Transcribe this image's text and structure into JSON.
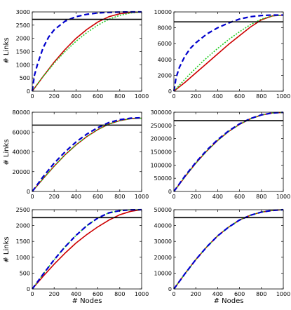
{
  "figure": {
    "xlabel": "# Nodes",
    "ylabel": "# Links"
  },
  "legend_colors": {
    "threshold": "#000000",
    "red_solid": "#cc0000",
    "green_dotted": "#22cc22",
    "blue_dashed": "#0000cc"
  },
  "chart_data": [
    {
      "type": "line",
      "row": 0,
      "col": 0,
      "xlim": [
        0,
        1000
      ],
      "ylim": [
        0,
        3000
      ],
      "xticks": [
        0,
        200,
        400,
        600,
        800,
        1000
      ],
      "yticks": [
        0,
        500,
        1000,
        1500,
        2000,
        2500,
        3000
      ],
      "ytick_labels": [
        "0",
        "500",
        "1000",
        "1500",
        "2000",
        "2500",
        "3000"
      ],
      "threshold": 2720,
      "series": [
        {
          "style": "red_solid",
          "x": [
            0,
            100,
            200,
            300,
            400,
            500,
            600,
            700,
            800,
            900,
            1000
          ],
          "y": [
            0,
            560,
            1100,
            1580,
            2000,
            2340,
            2620,
            2820,
            2930,
            2980,
            3000
          ]
        },
        {
          "style": "green_dotted",
          "x": [
            0,
            100,
            200,
            300,
            400,
            500,
            600,
            700,
            800,
            900,
            1000
          ],
          "y": [
            0,
            560,
            1060,
            1500,
            1890,
            2220,
            2500,
            2720,
            2870,
            2960,
            3000
          ]
        },
        {
          "style": "blue_dashed",
          "x": [
            0,
            20,
            50,
            100,
            150,
            200,
            300,
            400,
            500,
            600,
            700,
            800,
            900,
            1000
          ],
          "y": [
            0,
            600,
            1050,
            1650,
            2050,
            2320,
            2650,
            2820,
            2910,
            2960,
            2985,
            2995,
            3000,
            3000
          ]
        }
      ]
    },
    {
      "type": "line",
      "row": 0,
      "col": 1,
      "xlim": [
        0,
        1000
      ],
      "ylim": [
        0,
        10000
      ],
      "xticks": [
        0,
        200,
        400,
        600,
        800,
        1000
      ],
      "yticks": [
        0,
        2000,
        4000,
        6000,
        8000,
        10000
      ],
      "ytick_labels": [
        "0",
        "2000",
        "4000",
        "6000",
        "8000",
        "10000"
      ],
      "threshold": 8750,
      "series": [
        {
          "style": "red_solid",
          "x": [
            0,
            100,
            200,
            300,
            400,
            500,
            600,
            700,
            800,
            900,
            1000
          ],
          "y": [
            0,
            1100,
            2300,
            3500,
            4700,
            5900,
            7000,
            8100,
            9000,
            9500,
            9600
          ]
        },
        {
          "style": "green_dotted",
          "x": [
            0,
            100,
            200,
            300,
            400,
            500,
            600,
            700,
            800,
            900,
            1000
          ],
          "y": [
            0,
            1500,
            2900,
            4200,
            5400,
            6500,
            7500,
            8400,
            9100,
            9500,
            9600
          ]
        },
        {
          "style": "blue_dashed",
          "x": [
            0,
            20,
            50,
            100,
            150,
            200,
            300,
            400,
            500,
            600,
            700,
            800,
            900,
            1000
          ],
          "y": [
            0,
            1700,
            3000,
            4400,
            5400,
            6100,
            7200,
            8000,
            8600,
            9100,
            9400,
            9550,
            9600,
            9600
          ]
        }
      ]
    },
    {
      "type": "line",
      "row": 1,
      "col": 0,
      "xlim": [
        0,
        1000
      ],
      "ylim": [
        0,
        80000
      ],
      "xticks": [
        0,
        200,
        400,
        600,
        800,
        1000
      ],
      "yticks": [
        0,
        20000,
        40000,
        60000,
        80000
      ],
      "ytick_labels": [
        "0",
        "20000",
        "40000",
        "60000",
        "80000"
      ],
      "threshold": 67000,
      "series": [
        {
          "style": "red_solid",
          "x": [
            0,
            100,
            200,
            300,
            400,
            500,
            600,
            700,
            800,
            900,
            1000
          ],
          "y": [
            0,
            13000,
            25500,
            37000,
            47000,
            55500,
            62500,
            68000,
            71500,
            73500,
            74000
          ]
        },
        {
          "style": "green_dotted",
          "x": [
            0,
            100,
            200,
            300,
            400,
            500,
            600,
            700,
            800,
            900,
            1000
          ],
          "y": [
            0,
            13000,
            25500,
            37000,
            47000,
            55500,
            62500,
            68000,
            71500,
            73500,
            74000
          ]
        },
        {
          "style": "blue_dashed",
          "x": [
            0,
            100,
            200,
            300,
            400,
            500,
            600,
            700,
            800,
            900,
            1000
          ],
          "y": [
            0,
            15000,
            28500,
            40000,
            50000,
            58000,
            64500,
            69500,
            72500,
            74000,
            74500
          ]
        }
      ]
    },
    {
      "type": "line",
      "row": 1,
      "col": 1,
      "xlim": [
        0,
        1000
      ],
      "ylim": [
        0,
        300000
      ],
      "xticks": [
        0,
        200,
        400,
        600,
        800,
        1000
      ],
      "yticks": [
        0,
        50000,
        100000,
        150000,
        200000,
        250000,
        300000
      ],
      "ytick_labels": [
        "0",
        "50000",
        "100000",
        "150000",
        "200000",
        "250000",
        "300000"
      ],
      "threshold": 268000,
      "series": [
        {
          "style": "red_solid",
          "x": [
            0,
            100,
            200,
            300,
            400,
            500,
            600,
            700,
            800,
            900,
            1000
          ],
          "y": [
            0,
            55000,
            107000,
            153000,
            193000,
            227000,
            254000,
            275000,
            289000,
            297000,
            299000
          ]
        },
        {
          "style": "green_dotted",
          "x": [
            0,
            100,
            200,
            300,
            400,
            500,
            600,
            700,
            800,
            900,
            1000
          ],
          "y": [
            0,
            55000,
            107000,
            153000,
            193000,
            227000,
            254000,
            275000,
            289000,
            297000,
            299000
          ]
        },
        {
          "style": "blue_dashed",
          "x": [
            0,
            100,
            200,
            300,
            400,
            500,
            600,
            700,
            800,
            900,
            1000
          ],
          "y": [
            0,
            58000,
            110000,
            156000,
            196000,
            229000,
            256000,
            276000,
            290000,
            297000,
            299500
          ]
        }
      ]
    },
    {
      "type": "line",
      "row": 2,
      "col": 0,
      "xlim": [
        0,
        1000
      ],
      "ylim": [
        0,
        2500
      ],
      "xticks": [
        0,
        200,
        400,
        600,
        800,
        1000
      ],
      "yticks": [
        0,
        500,
        1000,
        1500,
        2000,
        2500
      ],
      "ytick_labels": [
        "0",
        "500",
        "1000",
        "1500",
        "2000",
        "2500"
      ],
      "threshold": 2250,
      "series": [
        {
          "style": "red_solid",
          "x": [
            0,
            100,
            200,
            300,
            400,
            500,
            600,
            700,
            800,
            900,
            1000
          ],
          "y": [
            0,
            400,
            780,
            1130,
            1450,
            1720,
            1960,
            2170,
            2340,
            2450,
            2500
          ]
        },
        {
          "style": "green_dotted",
          "x": [
            0,
            100,
            200,
            300,
            400,
            500,
            600,
            700,
            800,
            900,
            1000
          ],
          "y": [
            0,
            470,
            920,
            1330,
            1690,
            2000,
            2240,
            2400,
            2470,
            2495,
            2500
          ]
        },
        {
          "style": "blue_dashed",
          "x": [
            0,
            100,
            200,
            300,
            400,
            500,
            600,
            700,
            800,
            900,
            1000
          ],
          "y": [
            0,
            470,
            920,
            1330,
            1690,
            2000,
            2240,
            2400,
            2470,
            2495,
            2500
          ]
        }
      ]
    },
    {
      "type": "line",
      "row": 2,
      "col": 1,
      "xlim": [
        0,
        1000
      ],
      "ylim": [
        0,
        50000
      ],
      "xticks": [
        0,
        200,
        400,
        600,
        800,
        1000
      ],
      "yticks": [
        0,
        10000,
        20000,
        30000,
        40000,
        50000
      ],
      "ytick_labels": [
        "0",
        "10000",
        "20000",
        "30000",
        "40000",
        "50000"
      ],
      "threshold": 45000,
      "series": [
        {
          "style": "red_solid",
          "x": [
            0,
            100,
            200,
            300,
            400,
            500,
            600,
            700,
            800,
            900,
            1000
          ],
          "y": [
            0,
            9500,
            18500,
            26500,
            33500,
            39000,
            43500,
            46500,
            48500,
            49500,
            50000
          ]
        },
        {
          "style": "green_dotted",
          "x": [
            0,
            100,
            200,
            300,
            400,
            500,
            600,
            700,
            800,
            900,
            1000
          ],
          "y": [
            0,
            9500,
            18500,
            26500,
            33500,
            39000,
            43500,
            46500,
            48500,
            49500,
            50000
          ]
        },
        {
          "style": "blue_dashed",
          "x": [
            0,
            100,
            200,
            300,
            400,
            500,
            600,
            700,
            800,
            900,
            1000
          ],
          "y": [
            0,
            9500,
            18500,
            26500,
            33500,
            39000,
            43500,
            46500,
            48500,
            49500,
            50000
          ]
        }
      ]
    }
  ]
}
